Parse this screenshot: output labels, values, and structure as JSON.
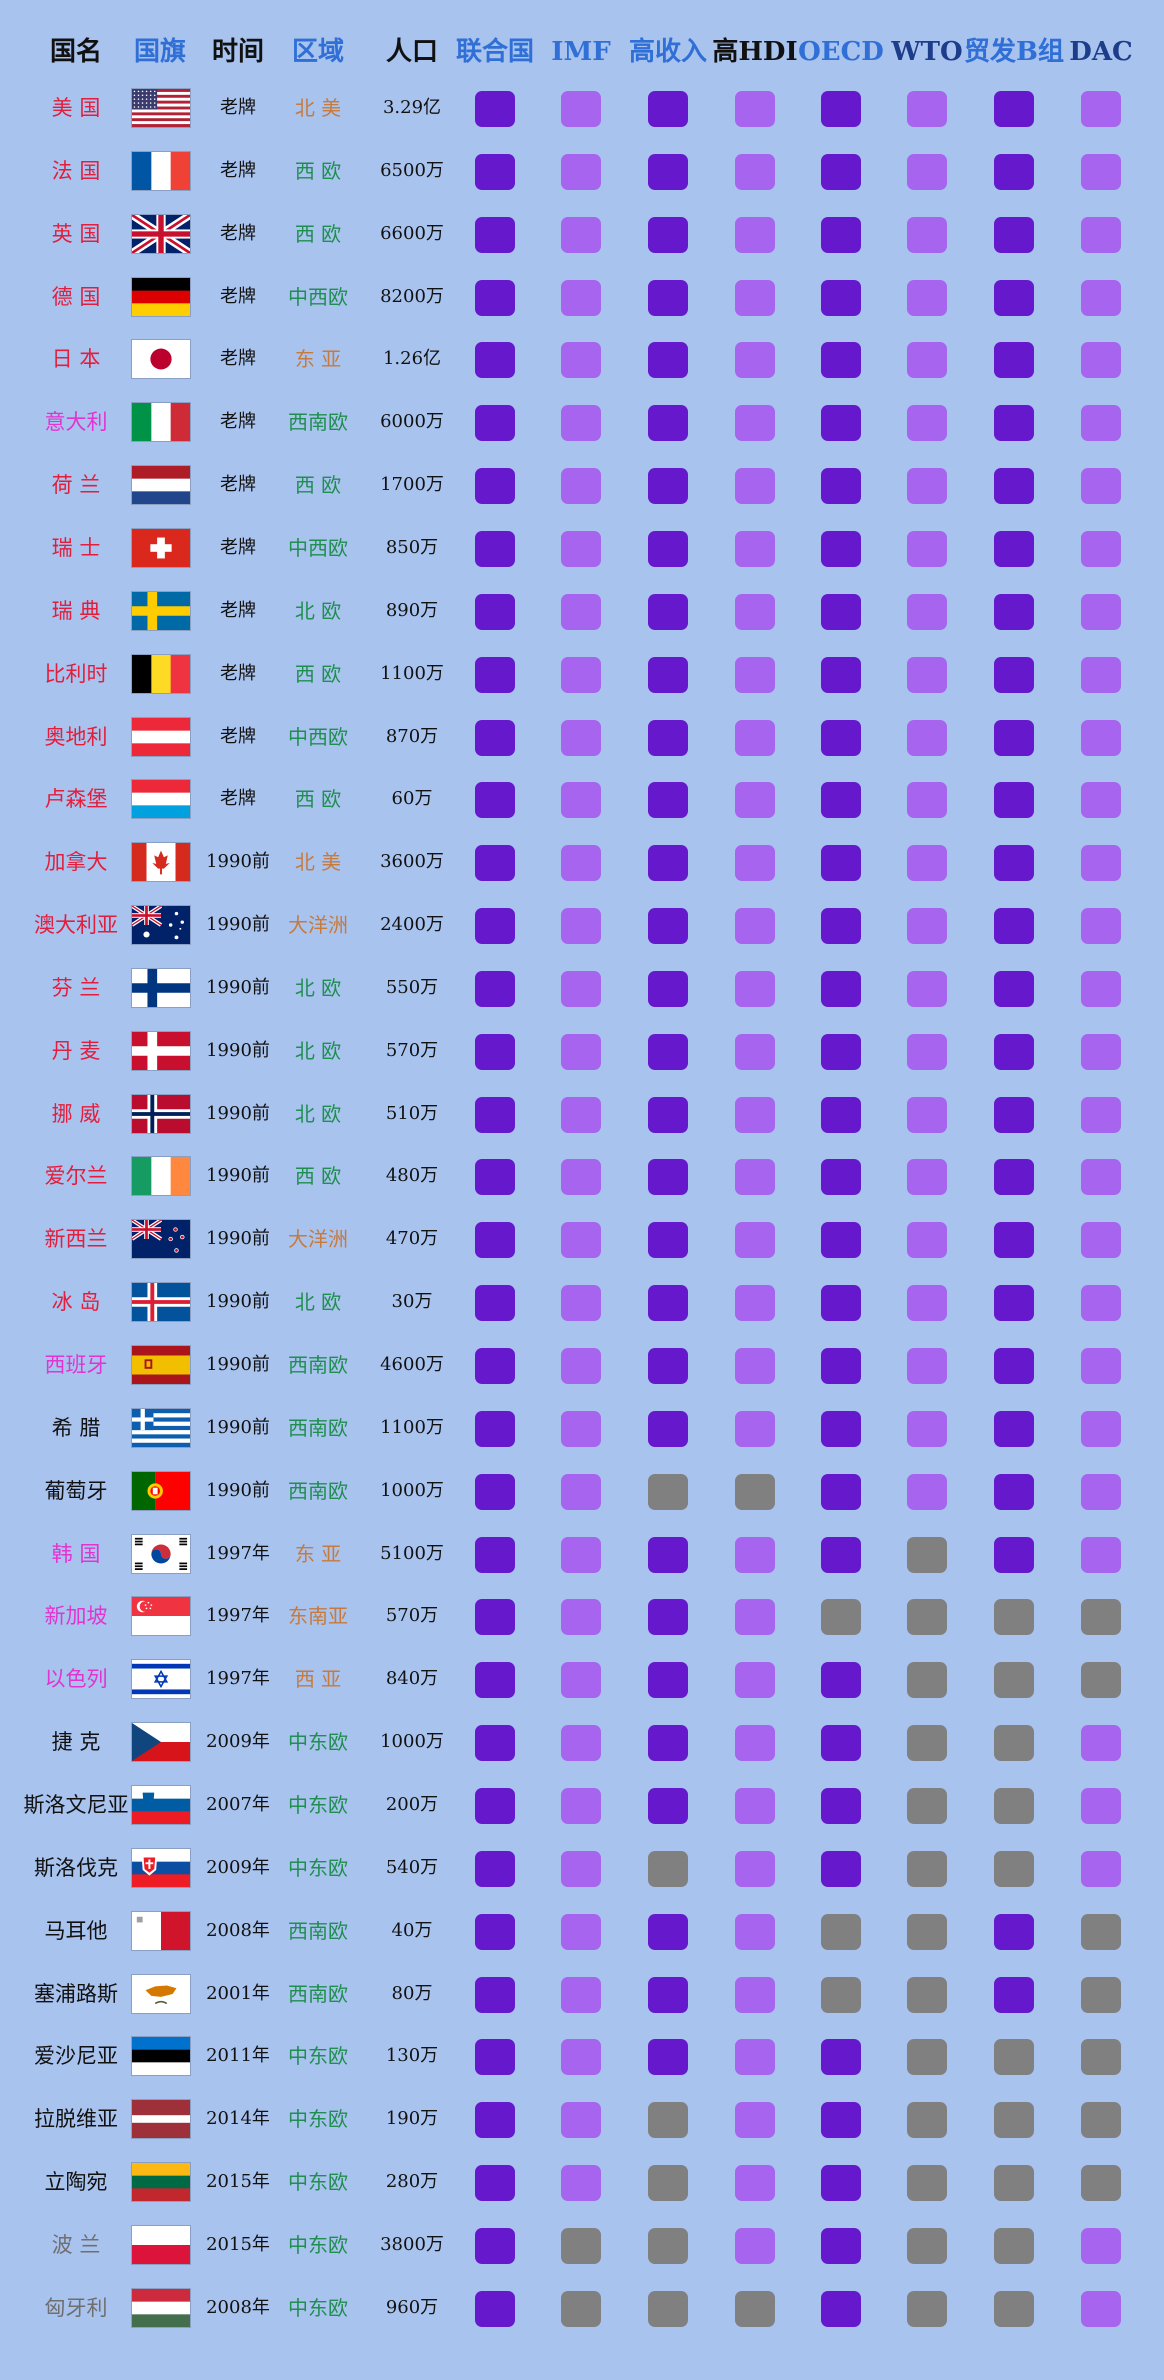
{
  "colors": {
    "background": "#a9c3ef",
    "member_dark": "#6618cc",
    "member_light": "#a764ee",
    "not_member": "#808080",
    "name_red": "#e31e3c",
    "name_magenta": "#e134d0",
    "name_black": "#111111",
    "name_gray": "#6f6f6f",
    "region_green": "#1f8e4f",
    "region_orange": "#c67a3c",
    "header_black": "#111111",
    "header_blue": "#2f6fd6",
    "header_dark_blue": "#1d3c8a"
  },
  "chart_data": {
    "type": "table",
    "columns": [
      {
        "label": "国名",
        "color": "#111111"
      },
      {
        "label": "国旗",
        "color": "#2f6fd6"
      },
      {
        "label": "时间",
        "color": "#111111"
      },
      {
        "label": "区域",
        "color": "#2f6fd6"
      },
      {
        "label": "人口",
        "color": "#111111"
      },
      {
        "label": "联合国",
        "color": "#2f6fd6"
      },
      {
        "label": "IMF",
        "color": "#2f6fd6"
      },
      {
        "label": "高收入",
        "color": "#2f6fd6"
      },
      {
        "label": "高HDI",
        "color": "#111111"
      },
      {
        "label": "OECD",
        "color": "#2f6fd6"
      },
      {
        "label": "WTO",
        "color": "#1d3c8a"
      },
      {
        "label": "贸发B组",
        "color": "#2f6fd6"
      },
      {
        "label": "DAC",
        "color": "#1d3c8a"
      }
    ],
    "rows": [
      {
        "name": "美 国",
        "name_color": "red",
        "flag": "us",
        "time": "老牌",
        "region": "北 美",
        "region_color": "orange",
        "population": "3.29亿",
        "membership": [
          1,
          1,
          1,
          1,
          1,
          1,
          1,
          1
        ]
      },
      {
        "name": "法 国",
        "name_color": "red",
        "flag": "fr",
        "time": "老牌",
        "region": "西 欧",
        "region_color": "green",
        "population": "6500万",
        "membership": [
          1,
          1,
          1,
          1,
          1,
          1,
          1,
          1
        ]
      },
      {
        "name": "英 国",
        "name_color": "red",
        "flag": "gb",
        "time": "老牌",
        "region": "西 欧",
        "region_color": "green",
        "population": "6600万",
        "membership": [
          1,
          1,
          1,
          1,
          1,
          1,
          1,
          1
        ]
      },
      {
        "name": "德 国",
        "name_color": "red",
        "flag": "de",
        "time": "老牌",
        "region": "中西欧",
        "region_color": "green",
        "population": "8200万",
        "membership": [
          1,
          1,
          1,
          1,
          1,
          1,
          1,
          1
        ]
      },
      {
        "name": "日 本",
        "name_color": "red",
        "flag": "jp",
        "time": "老牌",
        "region": "东 亚",
        "region_color": "orange",
        "population": "1.26亿",
        "membership": [
          1,
          1,
          1,
          1,
          1,
          1,
          1,
          1
        ]
      },
      {
        "name": "意大利",
        "name_color": "magenta",
        "flag": "it",
        "time": "老牌",
        "region": "西南欧",
        "region_color": "green",
        "population": "6000万",
        "membership": [
          1,
          1,
          1,
          1,
          1,
          1,
          1,
          1
        ]
      },
      {
        "name": "荷 兰",
        "name_color": "red",
        "flag": "nl",
        "time": "老牌",
        "region": "西 欧",
        "region_color": "green",
        "population": "1700万",
        "membership": [
          1,
          1,
          1,
          1,
          1,
          1,
          1,
          1
        ]
      },
      {
        "name": "瑞 士",
        "name_color": "red",
        "flag": "ch",
        "time": "老牌",
        "region": "中西欧",
        "region_color": "green",
        "population": "850万",
        "membership": [
          1,
          1,
          1,
          1,
          1,
          1,
          1,
          1
        ]
      },
      {
        "name": "瑞 典",
        "name_color": "red",
        "flag": "se",
        "time": "老牌",
        "region": "北 欧",
        "region_color": "green",
        "population": "890万",
        "membership": [
          1,
          1,
          1,
          1,
          1,
          1,
          1,
          1
        ]
      },
      {
        "name": "比利时",
        "name_color": "red",
        "flag": "be",
        "time": "老牌",
        "region": "西 欧",
        "region_color": "green",
        "population": "1100万",
        "membership": [
          1,
          1,
          1,
          1,
          1,
          1,
          1,
          1
        ]
      },
      {
        "name": "奥地利",
        "name_color": "red",
        "flag": "at",
        "time": "老牌",
        "region": "中西欧",
        "region_color": "green",
        "population": "870万",
        "membership": [
          1,
          1,
          1,
          1,
          1,
          1,
          1,
          1
        ]
      },
      {
        "name": "卢森堡",
        "name_color": "red",
        "flag": "lu",
        "time": "老牌",
        "region": "西 欧",
        "region_color": "green",
        "population": "60万",
        "membership": [
          1,
          1,
          1,
          1,
          1,
          1,
          1,
          1
        ]
      },
      {
        "name": "加拿大",
        "name_color": "red",
        "flag": "ca",
        "time": "1990前",
        "region": "北 美",
        "region_color": "orange",
        "population": "3600万",
        "membership": [
          1,
          1,
          1,
          1,
          1,
          1,
          1,
          1
        ]
      },
      {
        "name": "澳大利亚",
        "name_color": "red",
        "flag": "au",
        "time": "1990前",
        "region": "大洋洲",
        "region_color": "orange",
        "population": "2400万",
        "membership": [
          1,
          1,
          1,
          1,
          1,
          1,
          1,
          1
        ]
      },
      {
        "name": "芬 兰",
        "name_color": "red",
        "flag": "fi",
        "time": "1990前",
        "region": "北 欧",
        "region_color": "green",
        "population": "550万",
        "membership": [
          1,
          1,
          1,
          1,
          1,
          1,
          1,
          1
        ]
      },
      {
        "name": "丹 麦",
        "name_color": "red",
        "flag": "dk",
        "time": "1990前",
        "region": "北 欧",
        "region_color": "green",
        "population": "570万",
        "membership": [
          1,
          1,
          1,
          1,
          1,
          1,
          1,
          1
        ]
      },
      {
        "name": "挪 威",
        "name_color": "red",
        "flag": "no",
        "time": "1990前",
        "region": "北 欧",
        "region_color": "green",
        "population": "510万",
        "membership": [
          1,
          1,
          1,
          1,
          1,
          1,
          1,
          1
        ]
      },
      {
        "name": "爱尔兰",
        "name_color": "red",
        "flag": "ie",
        "time": "1990前",
        "region": "西 欧",
        "region_color": "green",
        "population": "480万",
        "membership": [
          1,
          1,
          1,
          1,
          1,
          1,
          1,
          1
        ]
      },
      {
        "name": "新西兰",
        "name_color": "red",
        "flag": "nz",
        "time": "1990前",
        "region": "大洋洲",
        "region_color": "orange",
        "population": "470万",
        "membership": [
          1,
          1,
          1,
          1,
          1,
          1,
          1,
          1
        ]
      },
      {
        "name": "冰 岛",
        "name_color": "red",
        "flag": "is",
        "time": "1990前",
        "region": "北 欧",
        "region_color": "green",
        "population": "30万",
        "membership": [
          1,
          1,
          1,
          1,
          1,
          1,
          1,
          1
        ]
      },
      {
        "name": "西班牙",
        "name_color": "magenta",
        "flag": "es",
        "time": "1990前",
        "region": "西南欧",
        "region_color": "green",
        "population": "4600万",
        "membership": [
          1,
          1,
          1,
          1,
          1,
          1,
          1,
          1
        ]
      },
      {
        "name": "希 腊",
        "name_color": "black",
        "flag": "gr",
        "time": "1990前",
        "region": "西南欧",
        "region_color": "green",
        "population": "1100万",
        "membership": [
          1,
          1,
          1,
          1,
          1,
          1,
          1,
          1
        ]
      },
      {
        "name": "葡萄牙",
        "name_color": "black",
        "flag": "pt",
        "time": "1990前",
        "region": "西南欧",
        "region_color": "green",
        "population": "1000万",
        "membership": [
          1,
          1,
          0,
          0,
          1,
          1,
          1,
          1
        ]
      },
      {
        "name": "韩 国",
        "name_color": "magenta",
        "flag": "kr",
        "time": "1997年",
        "region": "东 亚",
        "region_color": "orange",
        "population": "5100万",
        "membership": [
          1,
          1,
          1,
          1,
          1,
          0,
          1,
          1
        ]
      },
      {
        "name": "新加坡",
        "name_color": "magenta",
        "flag": "sg",
        "time": "1997年",
        "region": "东南亚",
        "region_color": "orange",
        "population": "570万",
        "membership": [
          1,
          1,
          1,
          1,
          0,
          0,
          0,
          0
        ]
      },
      {
        "name": "以色列",
        "name_color": "magenta",
        "flag": "il",
        "time": "1997年",
        "region": "西 亚",
        "region_color": "orange",
        "population": "840万",
        "membership": [
          1,
          1,
          1,
          1,
          1,
          0,
          0,
          0
        ]
      },
      {
        "name": "捷 克",
        "name_color": "black",
        "flag": "cz",
        "time": "2009年",
        "region": "中东欧",
        "region_color": "green",
        "population": "1000万",
        "membership": [
          1,
          1,
          1,
          1,
          1,
          0,
          0,
          1
        ]
      },
      {
        "name": "斯洛文尼亚",
        "name_color": "black",
        "flag": "si",
        "time": "2007年",
        "region": "中东欧",
        "region_color": "green",
        "population": "200万",
        "membership": [
          1,
          1,
          1,
          1,
          1,
          0,
          0,
          1
        ]
      },
      {
        "name": "斯洛伐克",
        "name_color": "black",
        "flag": "sk",
        "time": "2009年",
        "region": "中东欧",
        "region_color": "green",
        "population": "540万",
        "membership": [
          1,
          1,
          0,
          1,
          1,
          0,
          0,
          1
        ]
      },
      {
        "name": "马耳他",
        "name_color": "black",
        "flag": "mt",
        "time": "2008年",
        "region": "西南欧",
        "region_color": "green",
        "population": "40万",
        "membership": [
          1,
          1,
          1,
          1,
          0,
          0,
          1,
          0
        ]
      },
      {
        "name": "塞浦路斯",
        "name_color": "black",
        "flag": "cy",
        "time": "2001年",
        "region": "西南欧",
        "region_color": "green",
        "population": "80万",
        "membership": [
          1,
          1,
          1,
          1,
          0,
          0,
          1,
          0
        ]
      },
      {
        "name": "爱沙尼亚",
        "name_color": "black",
        "flag": "ee",
        "time": "2011年",
        "region": "中东欧",
        "region_color": "green",
        "population": "130万",
        "membership": [
          1,
          1,
          1,
          1,
          1,
          0,
          0,
          0
        ]
      },
      {
        "name": "拉脱维亚",
        "name_color": "black",
        "flag": "lv",
        "time": "2014年",
        "region": "中东欧",
        "region_color": "green",
        "population": "190万",
        "membership": [
          1,
          1,
          0,
          1,
          1,
          0,
          0,
          0
        ]
      },
      {
        "name": "立陶宛",
        "name_color": "black",
        "flag": "lt",
        "time": "2015年",
        "region": "中东欧",
        "region_color": "green",
        "population": "280万",
        "membership": [
          1,
          1,
          0,
          1,
          1,
          0,
          0,
          0
        ]
      },
      {
        "name": "波 兰",
        "name_color": "gray",
        "flag": "pl",
        "time": "2015年",
        "region": "中东欧",
        "region_color": "green",
        "population": "3800万",
        "membership": [
          1,
          0,
          0,
          1,
          1,
          0,
          0,
          1
        ]
      },
      {
        "name": "匈牙利",
        "name_color": "gray",
        "flag": "hu",
        "time": "2008年",
        "region": "中东欧",
        "region_color": "green",
        "population": "960万",
        "membership": [
          1,
          0,
          0,
          0,
          1,
          0,
          0,
          1
        ]
      }
    ]
  }
}
